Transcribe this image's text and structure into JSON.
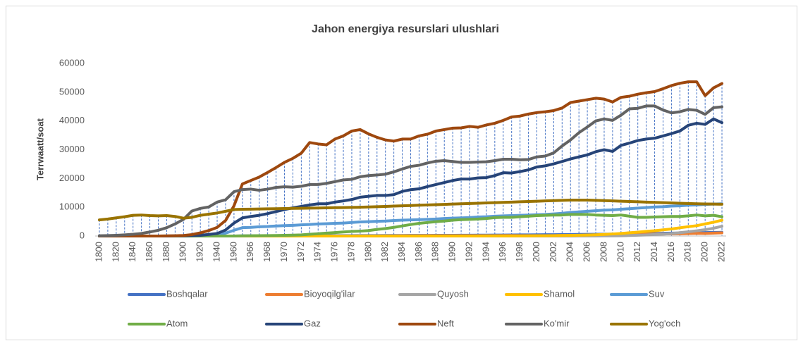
{
  "chart_data": {
    "type": "line",
    "title": "Jahon energiya resurslari ulushlari",
    "y_label": "Terrwaatt/soat",
    "categories": [
      1800,
      null,
      1820,
      null,
      1840,
      null,
      1860,
      null,
      1880,
      null,
      1900,
      null,
      1920,
      null,
      1940,
      null,
      1960,
      null,
      1966,
      null,
      1968,
      null,
      1970,
      null,
      1972,
      null,
      1974,
      null,
      1976,
      null,
      1978,
      null,
      1980,
      null,
      1982,
      null,
      1984,
      null,
      1986,
      null,
      1988,
      null,
      1990,
      null,
      1992,
      null,
      1994,
      null,
      1996,
      null,
      1998,
      null,
      2000,
      null,
      2002,
      null,
      2004,
      null,
      2006,
      null,
      2008,
      null,
      2010,
      null,
      2012,
      null,
      2014,
      null,
      2016,
      null,
      2018,
      null,
      2020,
      null,
      2022
    ],
    "ylim": [
      0,
      60000
    ],
    "yticks": [
      0,
      10000,
      20000,
      30000,
      40000,
      50000,
      60000
    ],
    "grid": false,
    "drop_lines": true,
    "legend": "bottom",
    "series": [
      {
        "name": "Boshqalar",
        "color": "#4472c4",
        "values": [
          0,
          0,
          0,
          0,
          0,
          0,
          0,
          0,
          0,
          0,
          0,
          0,
          0,
          0,
          0,
          0,
          0,
          50,
          55,
          60,
          65,
          70,
          75,
          80,
          85,
          90,
          95,
          100,
          110,
          120,
          130,
          140,
          150,
          160,
          170,
          180,
          190,
          200,
          210,
          220,
          230,
          240,
          260,
          270,
          280,
          300,
          320,
          330,
          350,
          370,
          390,
          410,
          430,
          450,
          470,
          500,
          520,
          550,
          580,
          610,
          640,
          680,
          720,
          760,
          800,
          850,
          900,
          950,
          1000,
          1050,
          1100,
          1150,
          1200,
          1250,
          1300
        ]
      },
      {
        "name": "Bioyoqilg'ilar",
        "color": "#ed7d31",
        "values": [
          0,
          0,
          0,
          0,
          0,
          0,
          0,
          0,
          0,
          0,
          0,
          0,
          0,
          0,
          0,
          0,
          0,
          0,
          0,
          0,
          0,
          0,
          0,
          0,
          0,
          0,
          0,
          0,
          0,
          0,
          10,
          20,
          30,
          40,
          50,
          70,
          80,
          90,
          100,
          110,
          110,
          110,
          120,
          120,
          120,
          120,
          130,
          130,
          140,
          140,
          130,
          130,
          120,
          130,
          150,
          180,
          200,
          240,
          300,
          380,
          460,
          500,
          550,
          560,
          570,
          620,
          680,
          700,
          730,
          780,
          870,
          950,
          900,
          1000,
          1100
        ]
      },
      {
        "name": "Quyosh",
        "color": "#a5a5a5",
        "values": [
          0,
          0,
          0,
          0,
          0,
          0,
          0,
          0,
          0,
          0,
          0,
          0,
          0,
          0,
          0,
          0,
          0,
          0,
          0,
          0,
          0,
          0,
          0,
          0,
          0,
          0,
          0,
          0,
          0,
          0,
          0,
          0,
          0,
          0,
          0,
          0,
          0,
          0,
          0,
          0,
          0,
          0,
          0,
          0,
          0,
          0,
          0,
          0,
          0,
          0,
          0,
          0,
          0,
          10,
          10,
          10,
          10,
          20,
          20,
          30,
          60,
          60,
          90,
          170,
          270,
          370,
          510,
          650,
          860,
          1170,
          1470,
          1820,
          2200,
          2700,
          3400
        ]
      },
      {
        "name": "Shamol",
        "color": "#ffc000",
        "values": [
          0,
          0,
          0,
          0,
          0,
          0,
          0,
          0,
          0,
          0,
          0,
          0,
          0,
          0,
          0,
          0,
          0,
          0,
          0,
          0,
          0,
          0,
          0,
          0,
          0,
          0,
          0,
          0,
          0,
          0,
          0,
          0,
          0,
          0,
          0,
          0,
          0,
          0,
          0,
          0,
          0,
          0,
          10,
          10,
          10,
          10,
          20,
          20,
          30,
          30,
          40,
          60,
          80,
          100,
          130,
          170,
          220,
          270,
          340,
          440,
          560,
          720,
          900,
          1130,
          1350,
          1630,
          1830,
          2150,
          2450,
          2860,
          3250,
          3600,
          4200,
          4800,
          5500
        ]
      },
      {
        "name": "Suv",
        "color": "#5b9bd5",
        "values": [
          0,
          0,
          0,
          0,
          0,
          0,
          0,
          0,
          0,
          0,
          0,
          100,
          200,
          400,
          600,
          1000,
          2000,
          2900,
          3000,
          3200,
          3300,
          3500,
          3600,
          3700,
          3900,
          4000,
          4200,
          4300,
          4400,
          4500,
          4700,
          4900,
          5000,
          5100,
          5200,
          5400,
          5500,
          5600,
          5700,
          5800,
          5900,
          6100,
          6200,
          6300,
          6400,
          6600,
          6700,
          6900,
          7000,
          7100,
          7200,
          7300,
          7400,
          7500,
          7700,
          7900,
          8200,
          8400,
          8600,
          8800,
          9000,
          9100,
          9300,
          9500,
          9700,
          9900,
          10100,
          10200,
          10400,
          10500,
          10700,
          10800,
          11000,
          11100,
          11200
        ]
      },
      {
        "name": "Atom",
        "color": "#70ad47",
        "values": [
          0,
          0,
          0,
          0,
          0,
          0,
          0,
          0,
          0,
          0,
          0,
          0,
          0,
          0,
          0,
          0,
          0,
          70,
          90,
          110,
          140,
          170,
          230,
          300,
          400,
          600,
          800,
          1000,
          1200,
          1400,
          1600,
          1700,
          1900,
          2300,
          2600,
          3000,
          3500,
          4000,
          4400,
          4700,
          5000,
          5200,
          5500,
          5700,
          5800,
          5900,
          6100,
          6400,
          6500,
          6500,
          6700,
          6900,
          7100,
          7200,
          7300,
          7300,
          7500,
          7500,
          7500,
          7300,
          7200,
          7100,
          7300,
          6900,
          6500,
          6500,
          6600,
          6700,
          6800,
          6800,
          7000,
          7300,
          7000,
          7200,
          6700
        ]
      },
      {
        "name": "Gaz",
        "color": "#264478",
        "values": [
          0,
          0,
          0,
          0,
          0,
          0,
          0,
          0,
          0,
          70,
          60,
          160,
          240,
          550,
          880,
          2100,
          4500,
          6300,
          6800,
          7200,
          7800,
          8500,
          9200,
          9800,
          10300,
          10800,
          11200,
          11200,
          11800,
          12200,
          12700,
          13500,
          13800,
          14100,
          14100,
          14400,
          15500,
          16100,
          16400,
          17200,
          17900,
          18600,
          19300,
          19800,
          19800,
          20200,
          20300,
          21000,
          22000,
          21900,
          22400,
          23000,
          24000,
          24400,
          25100,
          25900,
          26800,
          27500,
          28200,
          29300,
          30000,
          29400,
          31500,
          32300,
          33200,
          33700,
          34000,
          34800,
          35600,
          36500,
          38500,
          39200,
          38800,
          40700,
          39400
        ]
      },
      {
        "name": "Neft",
        "color": "#9e480e",
        "values": [
          0,
          0,
          0,
          0,
          0,
          0,
          0,
          10,
          50,
          100,
          180,
          500,
          1100,
          1900,
          3000,
          5400,
          10500,
          18100,
          19300,
          20500,
          22100,
          23800,
          25600,
          27000,
          28800,
          32500,
          32000,
          31700,
          33700,
          34800,
          36500,
          37000,
          35500,
          34300,
          33400,
          33000,
          33700,
          33700,
          34800,
          35400,
          36500,
          37000,
          37500,
          37600,
          38100,
          37800,
          38600,
          39200,
          40200,
          41400,
          41700,
          42400,
          42900,
          43200,
          43600,
          44500,
          46400,
          46900,
          47400,
          47900,
          47600,
          46600,
          48200,
          48600,
          49300,
          49800,
          50200,
          51200,
          52300,
          53100,
          53600,
          53600,
          48800,
          51500,
          53000
        ]
      },
      {
        "name": "Ko'mir",
        "color": "#636363",
        "values": [
          100,
          150,
          250,
          400,
          600,
          900,
          1400,
          2000,
          2900,
          4200,
          5800,
          8700,
          9600,
          10100,
          11800,
          12600,
          15400,
          16140,
          16300,
          15900,
          16300,
          16900,
          17100,
          17000,
          17300,
          17900,
          17900,
          18300,
          18900,
          19500,
          19700,
          20600,
          21000,
          21200,
          21500,
          22300,
          23300,
          24200,
          24600,
          25400,
          26000,
          26200,
          25900,
          25600,
          25600,
          25700,
          25800,
          26200,
          26700,
          26700,
          26500,
          26600,
          27500,
          27800,
          28900,
          31300,
          33400,
          35900,
          37900,
          40000,
          40700,
          40200,
          42000,
          44200,
          44400,
          45200,
          45200,
          43800,
          42800,
          43200,
          44000,
          43700,
          42300,
          44600,
          44900
        ]
      },
      {
        "name": "Yog'och",
        "color": "#997300",
        "values": [
          5600,
          5900,
          6300,
          6700,
          7200,
          7300,
          7100,
          7000,
          7100,
          6800,
          6200,
          6500,
          7200,
          7600,
          8000,
          8600,
          9200,
          9300,
          9350,
          9400,
          9450,
          9500,
          9550,
          9600,
          9650,
          9700,
          9750,
          9800,
          9850,
          9900,
          9950,
          10000,
          10100,
          10200,
          10300,
          10400,
          10500,
          10600,
          10700,
          10800,
          10900,
          11000,
          11100,
          11200,
          11300,
          11400,
          11500,
          11600,
          11700,
          11800,
          11900,
          12000,
          12100,
          12200,
          12300,
          12400,
          12500,
          12500,
          12500,
          12400,
          12300,
          12200,
          12100,
          12000,
          11900,
          11800,
          11700,
          11600,
          11500,
          11400,
          11300,
          11200,
          11150,
          11100,
          11050
        ]
      }
    ]
  }
}
